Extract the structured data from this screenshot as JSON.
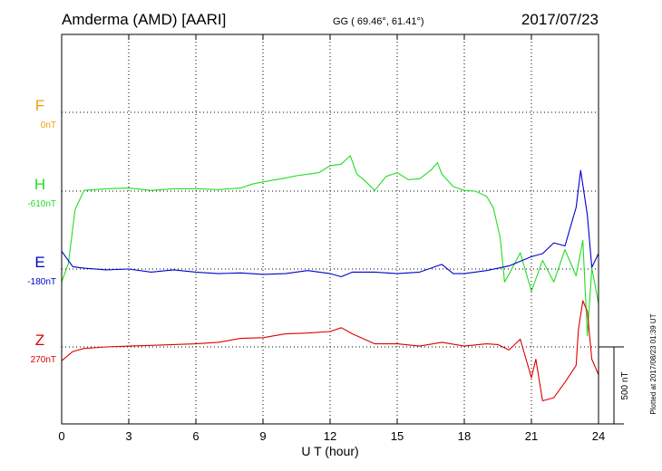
{
  "header": {
    "station": "Amderma (AMD)  [AARI]",
    "coords": "GG ( 69.46°,  61.41°)",
    "date": "2017/07/23"
  },
  "side_note": "Plotted at 2017/08/23 01:39 UT",
  "colors": {
    "F": "#f0a000",
    "H": "#22dd22",
    "E": "#0000cc",
    "Z": "#dd0000"
  },
  "chart_data": {
    "type": "line",
    "xlabel": "U T (hour)",
    "xlim": [
      0,
      24
    ],
    "xticks": [
      "0",
      "3",
      "6",
      "9",
      "12",
      "15",
      "18",
      "21",
      "24"
    ],
    "scale_bar": "500 nT",
    "scale_nT": 500,
    "grid": true,
    "components": [
      {
        "key": "F",
        "name": "F",
        "baseline": "0nT",
        "has_trace": false
      },
      {
        "key": "H",
        "name": "H",
        "baseline": "-610nT",
        "has_trace": true
      },
      {
        "key": "E",
        "name": "E",
        "baseline": "-180nT",
        "has_trace": true
      },
      {
        "key": "Z",
        "name": "Z",
        "baseline": "270nT",
        "has_trace": true
      }
    ],
    "series": [
      {
        "name": "H",
        "x": [
          0,
          0.3,
          0.6,
          1,
          2,
          3,
          4,
          5,
          6,
          7,
          8,
          8.5,
          9,
          10,
          10.5,
          11,
          11.5,
          12,
          12.5,
          12.9,
          13.2,
          13.5,
          14,
          14.5,
          15,
          15.5,
          16,
          16.5,
          16.8,
          17,
          17.5,
          18,
          18.5,
          19,
          19.3,
          19.6,
          19.8,
          20,
          20.5,
          21,
          21.5,
          22,
          22.5,
          23,
          23.3,
          23.5,
          23.7,
          24
        ],
        "y": [
          -590,
          -470,
          -120,
          5,
          15,
          20,
          5,
          15,
          15,
          10,
          20,
          45,
          60,
          85,
          100,
          110,
          120,
          165,
          175,
          230,
          110,
          75,
          5,
          95,
          120,
          75,
          80,
          135,
          185,
          110,
          30,
          5,
          0,
          -35,
          -110,
          -300,
          -590,
          -540,
          -400,
          -650,
          -450,
          -590,
          -380,
          -550,
          -320,
          -940,
          -500,
          -730
        ]
      },
      {
        "name": "E",
        "x": [
          0,
          0.5,
          1,
          2,
          3,
          4,
          5,
          6,
          7,
          8,
          9,
          10,
          11,
          12,
          12.5,
          13,
          14,
          15,
          16,
          17,
          17.5,
          18,
          19,
          20,
          21,
          21.5,
          22,
          22.5,
          23,
          23.2,
          23.5,
          23.7,
          24
        ],
        "y": [
          115,
          15,
          5,
          -5,
          0,
          -20,
          -5,
          -20,
          -30,
          -25,
          -35,
          -30,
          -10,
          -30,
          -50,
          -20,
          -20,
          -30,
          -20,
          30,
          -30,
          -30,
          -10,
          20,
          80,
          100,
          170,
          150,
          400,
          640,
          350,
          10,
          100
        ]
      },
      {
        "name": "Z",
        "x": [
          0,
          0.5,
          1,
          2,
          3,
          4,
          5,
          6,
          7,
          8,
          9,
          10,
          11,
          12,
          12.5,
          13,
          14,
          15,
          16,
          17,
          18,
          19,
          19.5,
          20,
          20.5,
          21,
          21.2,
          21.5,
          22,
          22.5,
          23,
          23.1,
          23.3,
          23.5,
          23.7,
          24
        ],
        "y": [
          -90,
          -30,
          -10,
          0,
          5,
          10,
          15,
          20,
          30,
          55,
          60,
          85,
          90,
          100,
          125,
          85,
          20,
          20,
          5,
          30,
          5,
          20,
          15,
          -20,
          50,
          -200,
          -80,
          -350,
          -330,
          -230,
          -120,
          110,
          300,
          230,
          -80,
          -180
        ]
      }
    ]
  }
}
